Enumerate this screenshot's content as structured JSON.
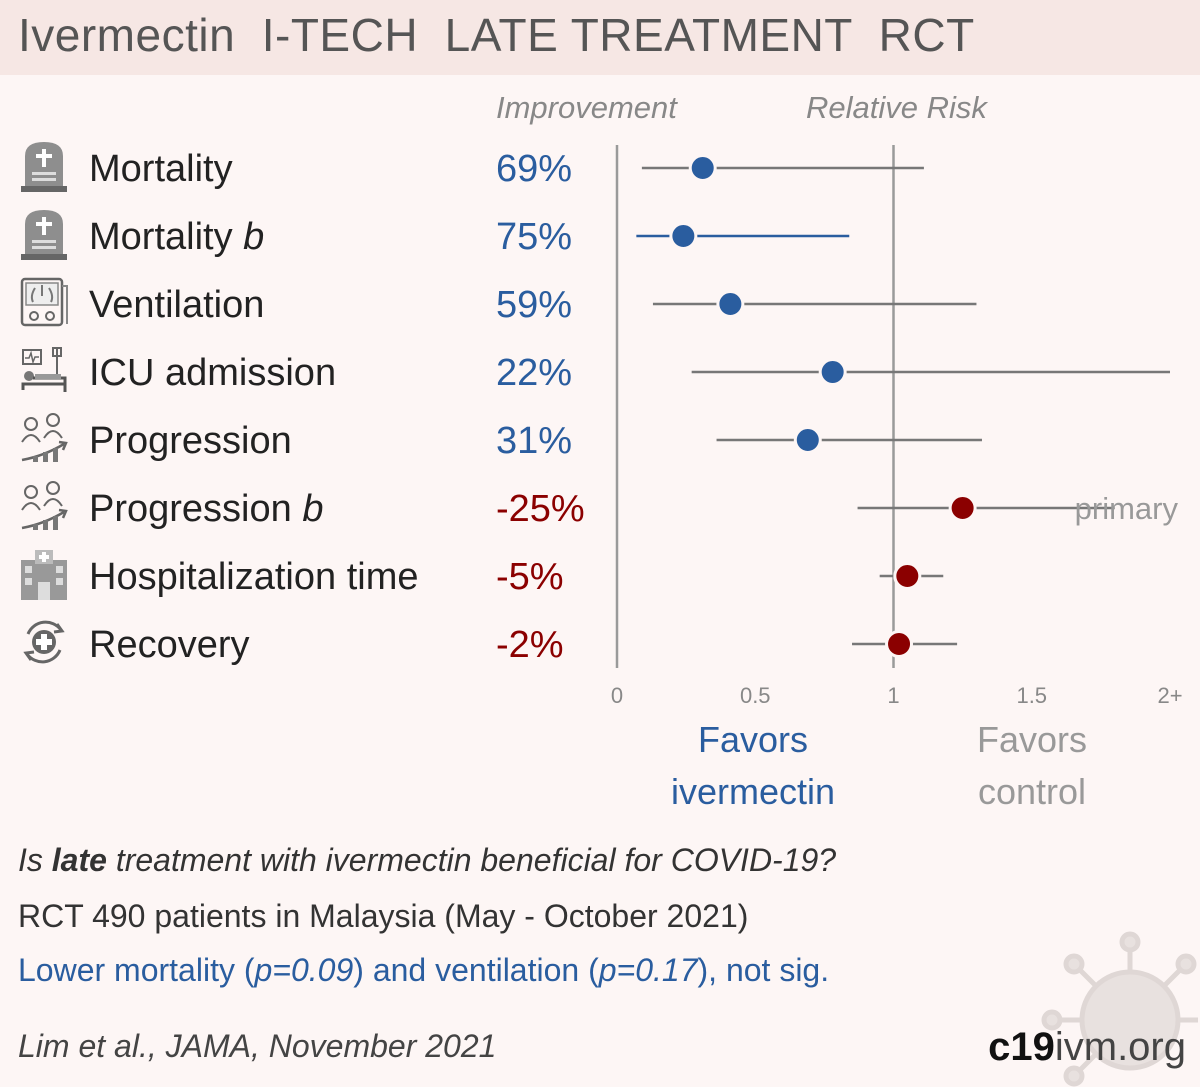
{
  "title": {
    "drug": "Ivermectin",
    "trial": "I-TECH",
    "stage": "LATE TREATMENT",
    "design": "RCT"
  },
  "colors": {
    "benefit": "#2a5d9f",
    "harm": "#8b0000",
    "ci_benefit_blue": "#2a5d9f",
    "ci_neutral": "#777777"
  },
  "chart_data": {
    "type": "scatter",
    "subtype": "forest-plot",
    "column_headers": {
      "improvement": "Improvement",
      "relative_risk": "Relative Risk"
    },
    "x_ticks": [
      "0",
      "0.5",
      "1",
      "1.5",
      "2+"
    ],
    "xlim": [
      0,
      2
    ],
    "reference_line": 1,
    "favors_left": [
      "Favors",
      "ivermectin"
    ],
    "favors_right": [
      "Favors",
      "control"
    ],
    "outcomes": [
      {
        "label": "Mortality",
        "label_italic": "",
        "icon": "tombstone-icon",
        "improvement": "69%",
        "rr": 0.31,
        "ci": [
          0.09,
          1.11
        ],
        "direction": "benefit",
        "ci_highlight": false,
        "note": ""
      },
      {
        "label": "Mortality ",
        "label_italic": "b",
        "icon": "tombstone-icon",
        "improvement": "75%",
        "rr": 0.24,
        "ci": [
          0.07,
          0.84
        ],
        "direction": "benefit",
        "ci_highlight": true,
        "note": ""
      },
      {
        "label": "Ventilation",
        "label_italic": "",
        "icon": "ventilator-icon",
        "improvement": "59%",
        "rr": 0.41,
        "ci": [
          0.13,
          1.3
        ],
        "direction": "benefit",
        "ci_highlight": false,
        "note": ""
      },
      {
        "label": "ICU admission",
        "label_italic": "",
        "icon": "icu-bed-icon",
        "improvement": "22%",
        "rr": 0.78,
        "ci": [
          0.27,
          2.0
        ],
        "direction": "benefit",
        "ci_highlight": false,
        "note": ""
      },
      {
        "label": "Progression",
        "label_italic": "",
        "icon": "progression-icon",
        "improvement": "31%",
        "rr": 0.69,
        "ci": [
          0.36,
          1.32
        ],
        "direction": "benefit",
        "ci_highlight": false,
        "note": ""
      },
      {
        "label": "Progression ",
        "label_italic": "b",
        "icon": "progression-icon",
        "improvement": "-25%",
        "rr": 1.25,
        "ci": [
          0.87,
          1.8
        ],
        "direction": "harm",
        "ci_highlight": false,
        "note": "primary"
      },
      {
        "label": "Hospitalization time",
        "label_italic": "",
        "icon": "hospital-icon",
        "improvement": "-5%",
        "rr": 1.05,
        "ci": [
          0.95,
          1.18
        ],
        "direction": "harm",
        "ci_highlight": false,
        "note": ""
      },
      {
        "label": "Recovery",
        "label_italic": "",
        "icon": "recovery-icon",
        "improvement": "-2%",
        "rr": 1.02,
        "ci": [
          0.85,
          1.23
        ],
        "direction": "harm",
        "ci_highlight": false,
        "note": ""
      }
    ]
  },
  "footer": {
    "question_pre": "Is ",
    "question_bold": "late",
    "question_post": " treatment with ivermectin beneficial for COVID-19?",
    "rct_line": "RCT 490 patients in Malaysia (May - October 2021)",
    "result_line_parts": [
      "Lower mortality (",
      "p=0.09",
      ") and ventilation (",
      "p=0.17",
      "), not sig."
    ],
    "citation": "Lim et al., JAMA, November 2021",
    "site_bold": "c19",
    "site_rest": "ivm.org"
  }
}
